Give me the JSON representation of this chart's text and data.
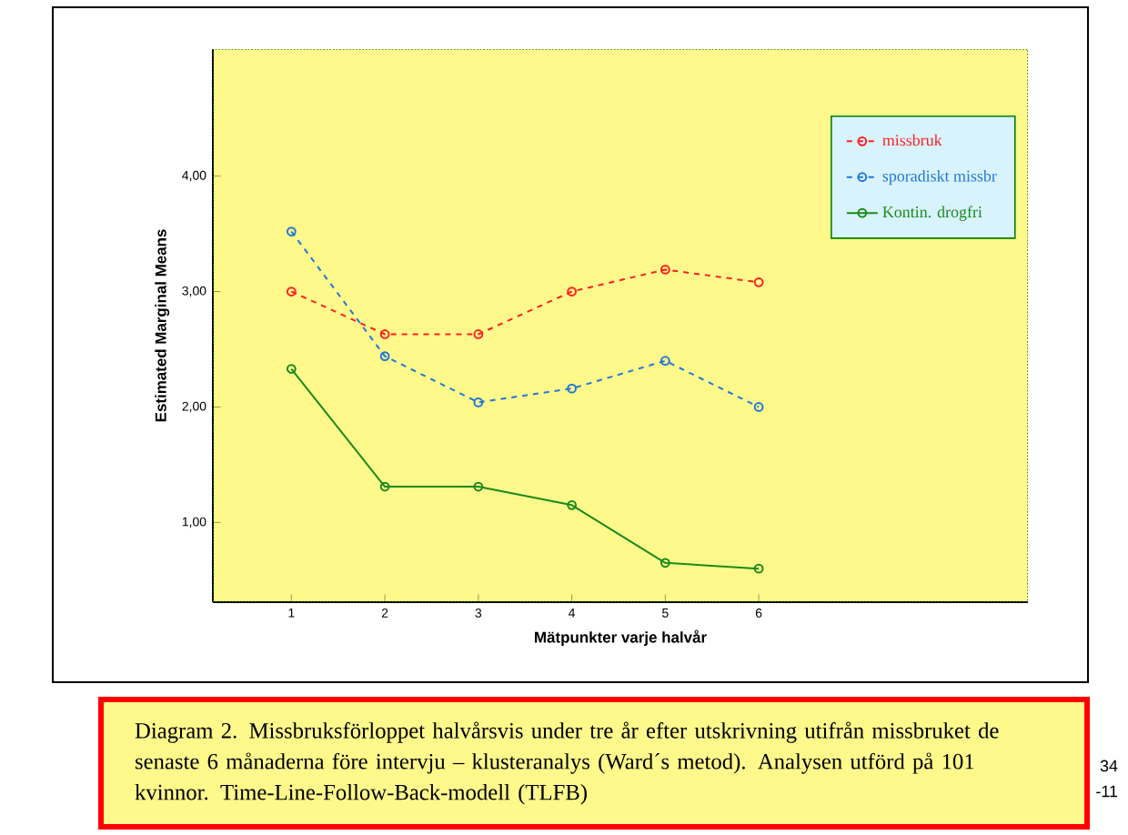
{
  "chart_data": {
    "type": "line",
    "xlabel": "Mätpunkter varje halvår",
    "ylabel": "Estimated Marginal Means",
    "x": [
      1,
      2,
      3,
      4,
      5,
      6
    ],
    "xlim": [
      0.16,
      8.88
    ],
    "xticks": [
      1,
      2,
      3,
      4,
      5,
      6
    ],
    "ylim": [
      0.31,
      5.1
    ],
    "yticks": [
      {
        "value": 1,
        "label": "1,00"
      },
      {
        "value": 2,
        "label": "2,00"
      },
      {
        "value": 3,
        "label": "3,00"
      },
      {
        "value": 4,
        "label": "4,00"
      }
    ],
    "series": [
      {
        "name": "missbruk",
        "color": "#ff2020",
        "line_style": "dashed",
        "values": [
          3.0,
          2.63,
          2.63,
          3.0,
          3.19,
          3.08
        ]
      },
      {
        "name": "sporadiskt missbr",
        "color": "#1e78d8",
        "line_style": "dashed",
        "values": [
          3.52,
          2.44,
          2.04,
          2.16,
          2.4,
          2.0
        ]
      },
      {
        "name": "Kontin. drogfri",
        "color": "#1a8a1a",
        "line_style": "solid",
        "values": [
          2.33,
          1.31,
          1.31,
          1.15,
          0.65,
          0.6
        ]
      }
    ],
    "marker": "circle",
    "legend": "top right",
    "grid": false,
    "annotations": [
      "Diagram 2. Missbruksförloppet halvårsvis under tre år efter utskrivning utifrån missbruket de senaste 6 månaderna före intervju – klusteranalys (Ward´s metod). Analysen utförd på 101 kvinnor. Time-Line-Follow-Back-modell (TLFB)",
      "34",
      "-11"
    ]
  }
}
